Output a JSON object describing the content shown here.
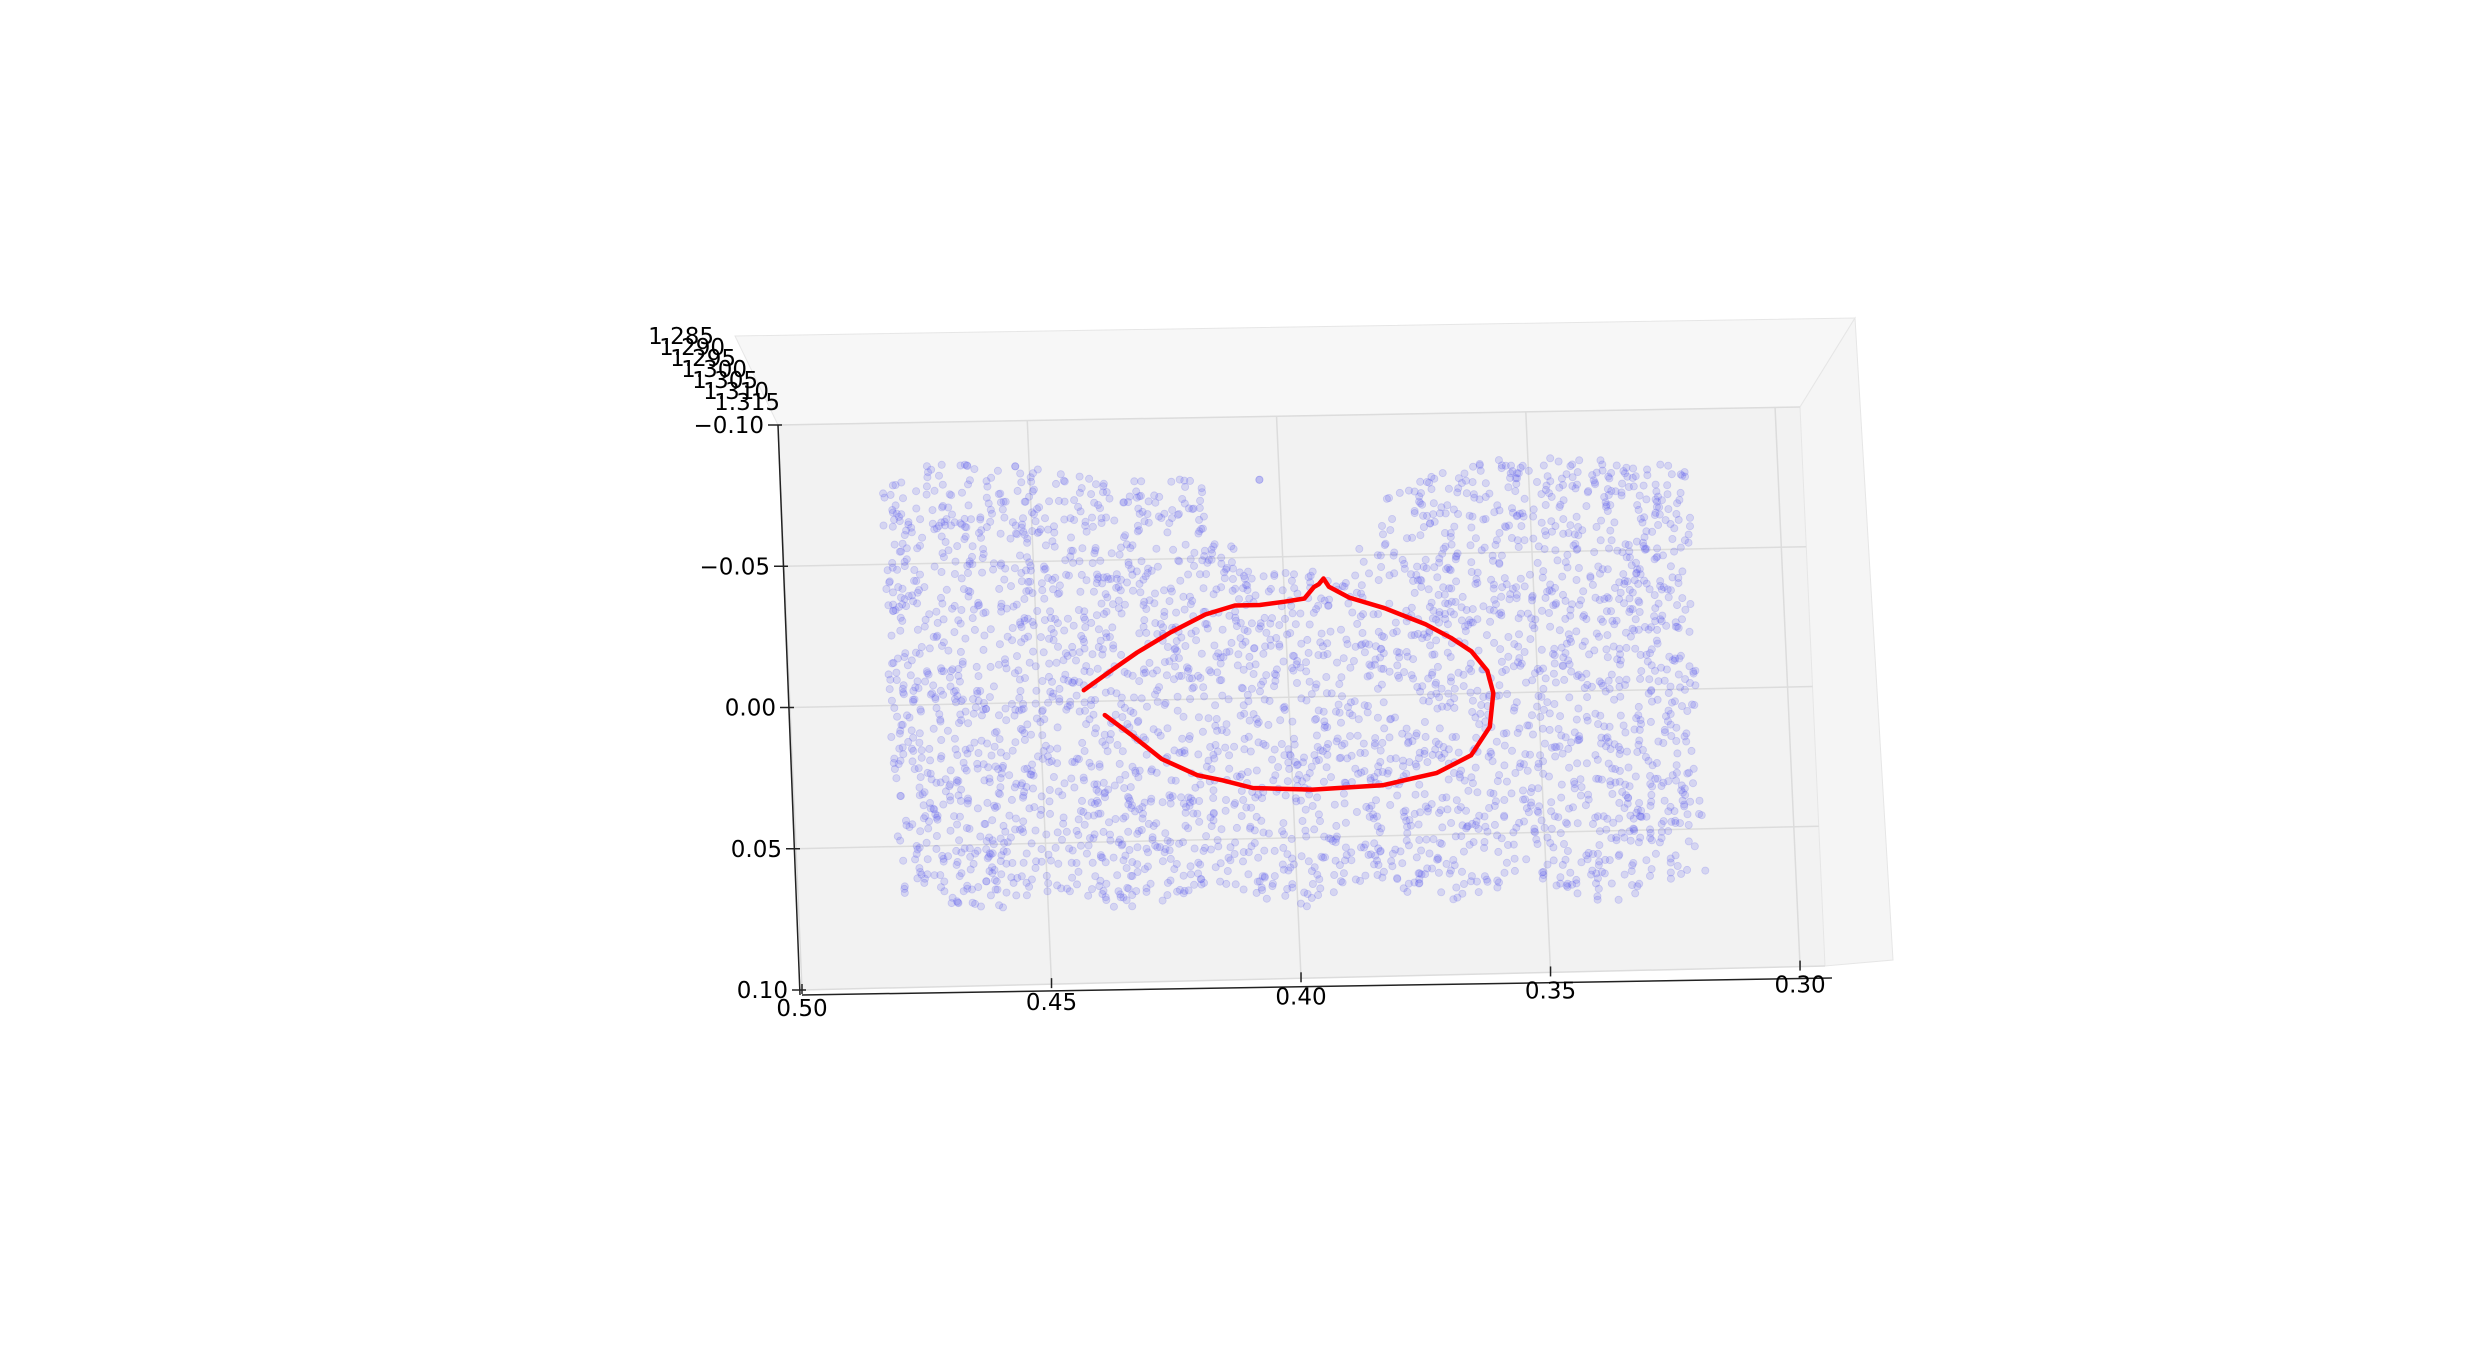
{
  "chart_data": {
    "type": "scatter",
    "title": "",
    "xlabel": "",
    "ylabel": "",
    "zlabel": "",
    "x_axis": {
      "ticks": [
        0.5,
        0.45,
        0.4,
        0.35,
        0.3
      ],
      "tick_labels": [
        "0.50",
        "0.45",
        "0.40",
        "0.35",
        "0.30"
      ],
      "range": [
        0.5,
        0.295
      ],
      "direction": "decreasing-left-to-right"
    },
    "y_axis": {
      "ticks": [
        -0.1,
        -0.05,
        0.0,
        0.05,
        0.1
      ],
      "tick_labels": [
        "−0.10",
        "−0.05",
        "0.00",
        "0.05",
        "0.10"
      ],
      "range": [
        -0.1,
        0.1
      ]
    },
    "z_axis": {
      "ticks": [
        1.285,
        1.29,
        1.295,
        1.3,
        1.305,
        1.31,
        1.315
      ],
      "tick_labels": [
        "1.285",
        "1.290",
        "1.295",
        "1.300",
        "1.305",
        "1.310",
        "1.315"
      ]
    },
    "grid": true,
    "series": [
      {
        "kind": "scatter",
        "color": "#5555ee",
        "point_count": 3200,
        "x_range": [
          0.48,
          0.318
        ],
        "y_range": [
          -0.085,
          0.075
        ],
        "hole_region": {
          "x": [
            0.415,
            0.38
          ],
          "y": [
            -0.085,
            -0.045
          ]
        },
        "top_edge_notes": "cloud top edge dips near x=0.38-0.40"
      },
      {
        "kind": "line",
        "color": "#ff0000",
        "points": [
          [
            0.437,
            0.005
          ],
          [
            0.432,
            0.012
          ],
          [
            0.426,
            0.021
          ],
          [
            0.419,
            0.027
          ],
          [
            0.414,
            0.029
          ],
          [
            0.408,
            0.032
          ],
          [
            0.396,
            0.033
          ],
          [
            0.382,
            0.032
          ],
          [
            0.371,
            0.028
          ],
          [
            0.364,
            0.022
          ],
          [
            0.36,
            0.012
          ],
          [
            0.359,
            0.0
          ],
          [
            0.36,
            -0.008
          ],
          [
            0.363,
            -0.015
          ],
          [
            0.367,
            -0.02
          ],
          [
            0.372,
            -0.025
          ],
          [
            0.38,
            -0.031
          ],
          [
            0.387,
            -0.035
          ],
          [
            0.391,
            -0.039
          ],
          [
            0.392,
            -0.042
          ],
          [
            0.393,
            -0.04
          ],
          [
            0.394,
            -0.039
          ],
          [
            0.396,
            -0.035
          ],
          [
            0.4,
            -0.034
          ],
          [
            0.405,
            -0.033
          ],
          [
            0.41,
            -0.033
          ],
          [
            0.416,
            -0.03
          ],
          [
            0.423,
            -0.024
          ],
          [
            0.43,
            -0.017
          ],
          [
            0.436,
            -0.01
          ],
          [
            0.441,
            -0.004
          ]
        ]
      }
    ]
  }
}
